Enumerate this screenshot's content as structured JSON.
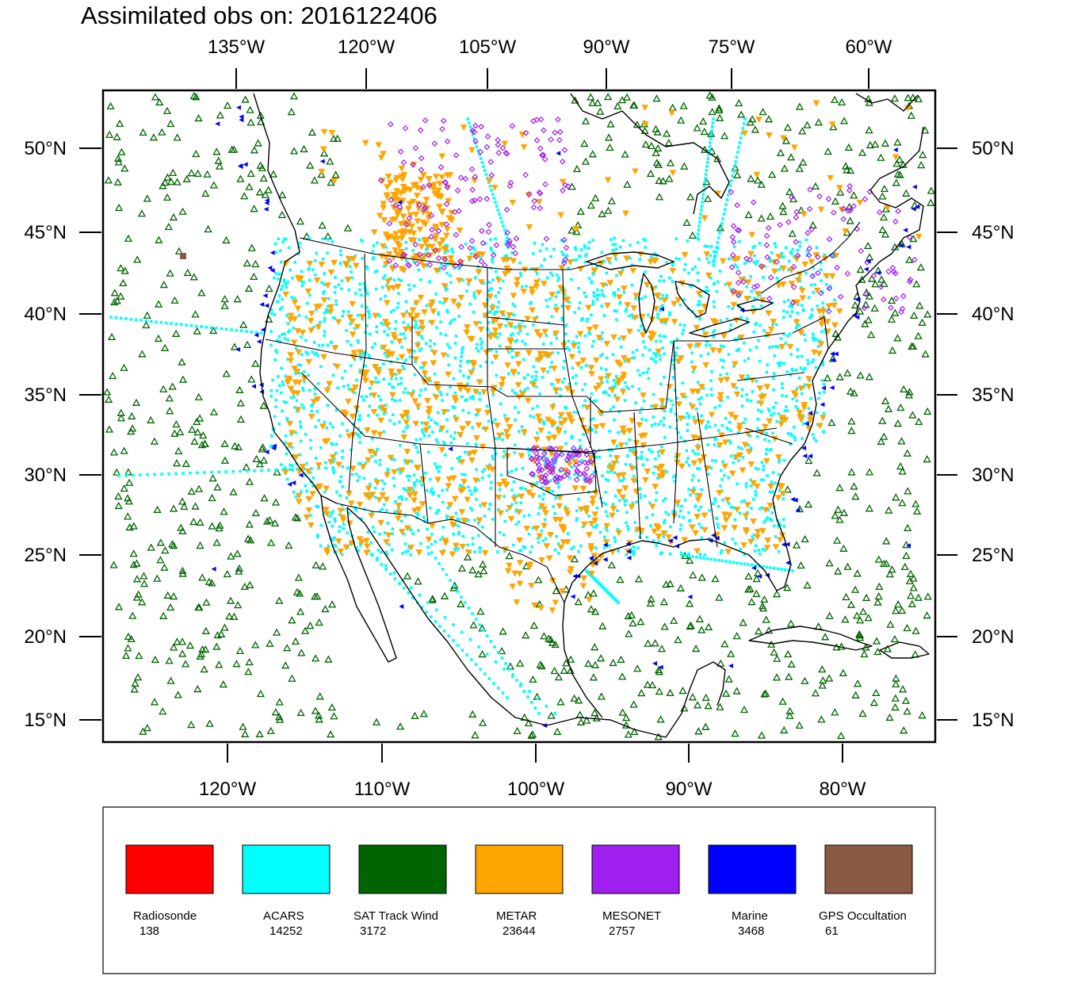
{
  "title": "Assimilated obs on: 2016122406",
  "top_lon_labels": [
    "135°W",
    "120°W",
    "105°W",
    "90°W",
    "75°W",
    "60°W"
  ],
  "bottom_lon_labels": [
    "120°W",
    "110°W",
    "100°W",
    "90°W",
    "80°W"
  ],
  "lat_labels": [
    "50°N",
    "45°N",
    "40°N",
    "35°N",
    "30°N",
    "25°N",
    "20°N",
    "15°N"
  ],
  "legend": [
    {
      "name": "Radiosonde",
      "count": "138",
      "color": "#ff0000"
    },
    {
      "name": "ACARS",
      "count": "14252",
      "color": "#00ffff"
    },
    {
      "name": "SAT Track Wind",
      "count": "3172",
      "color": "#006400"
    },
    {
      "name": "METAR",
      "count": "23644",
      "color": "#ffa500"
    },
    {
      "name": "MESONET",
      "count": "2757",
      "color": "#a020f0"
    },
    {
      "name": "Marine",
      "count": "3468",
      "color": "#0000ff"
    },
    {
      "name": "GPS Occultation",
      "count": "61",
      "color": "#8b5a45"
    }
  ]
}
